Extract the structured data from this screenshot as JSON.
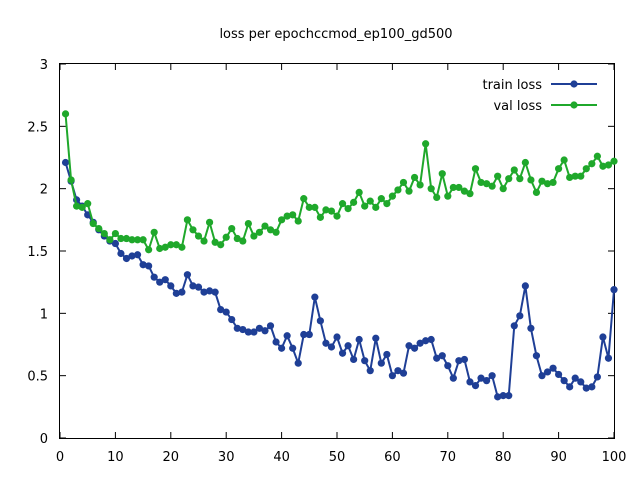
{
  "chart_data": {
    "type": "line",
    "title": "loss per epochccmod_ep100_gd500",
    "xlabel": "",
    "ylabel": "",
    "xlim": [
      0,
      100
    ],
    "ylim": [
      0,
      3
    ],
    "xticks": [
      0,
      10,
      20,
      30,
      40,
      50,
      60,
      70,
      80,
      90,
      100
    ],
    "yticks": [
      0,
      0.5,
      1,
      1.5,
      2,
      2.5,
      3
    ],
    "ytick_labels": [
      "0",
      "0.5",
      "1",
      "1.5",
      "2",
      "2.5",
      "3"
    ],
    "grid": false,
    "legend_position": "top-right",
    "x": [
      1,
      2,
      3,
      4,
      5,
      6,
      7,
      8,
      9,
      10,
      11,
      12,
      13,
      14,
      15,
      16,
      17,
      18,
      19,
      20,
      21,
      22,
      23,
      24,
      25,
      26,
      27,
      28,
      29,
      30,
      31,
      32,
      33,
      34,
      35,
      36,
      37,
      38,
      39,
      40,
      41,
      42,
      43,
      44,
      45,
      46,
      47,
      48,
      49,
      50,
      51,
      52,
      53,
      54,
      55,
      56,
      57,
      58,
      59,
      60,
      61,
      62,
      63,
      64,
      65,
      66,
      67,
      68,
      69,
      70,
      71,
      72,
      73,
      74,
      75,
      76,
      77,
      78,
      79,
      80,
      81,
      82,
      83,
      84,
      85,
      86,
      87,
      88,
      89,
      90,
      91,
      92,
      93,
      94,
      95,
      96,
      97,
      98,
      99,
      100
    ],
    "series": [
      {
        "name": "train loss",
        "color": "#1f3f96",
        "values": [
          2.21,
          2.06,
          1.91,
          1.86,
          1.79,
          1.73,
          1.67,
          1.62,
          1.58,
          1.56,
          1.48,
          1.44,
          1.46,
          1.47,
          1.39,
          1.38,
          1.29,
          1.25,
          1.27,
          1.22,
          1.16,
          1.17,
          1.31,
          1.22,
          1.21,
          1.17,
          1.18,
          1.17,
          1.03,
          1.01,
          0.95,
          0.88,
          0.87,
          0.85,
          0.85,
          0.88,
          0.86,
          0.9,
          0.77,
          0.72,
          0.82,
          0.72,
          0.6,
          0.83,
          0.83,
          1.13,
          0.94,
          0.76,
          0.73,
          0.81,
          0.68,
          0.74,
          0.63,
          0.79,
          0.62,
          0.54,
          0.8,
          0.6,
          0.67,
          0.5,
          0.54,
          0.52,
          0.74,
          0.72,
          0.76,
          0.78,
          0.79,
          0.64,
          0.66,
          0.58,
          0.48,
          0.62,
          0.63,
          0.45,
          0.42,
          0.48,
          0.46,
          0.5,
          0.33,
          0.34,
          0.34,
          0.9,
          0.98,
          1.22,
          0.88,
          0.66,
          0.5,
          0.53,
          0.56,
          0.51,
          0.46,
          0.41,
          0.48,
          0.45,
          0.4,
          0.41,
          0.49,
          0.81,
          0.64,
          1.19
        ]
      },
      {
        "name": "val loss",
        "color": "#1fa82b",
        "values": [
          2.6,
          2.07,
          1.86,
          1.85,
          1.88,
          1.72,
          1.68,
          1.64,
          1.59,
          1.64,
          1.6,
          1.6,
          1.59,
          1.59,
          1.59,
          1.51,
          1.65,
          1.52,
          1.53,
          1.55,
          1.55,
          1.53,
          1.75,
          1.67,
          1.62,
          1.58,
          1.73,
          1.57,
          1.55,
          1.61,
          1.68,
          1.6,
          1.58,
          1.72,
          1.62,
          1.65,
          1.7,
          1.67,
          1.65,
          1.75,
          1.78,
          1.79,
          1.74,
          1.92,
          1.85,
          1.85,
          1.77,
          1.83,
          1.82,
          1.78,
          1.88,
          1.84,
          1.89,
          1.97,
          1.86,
          1.9,
          1.85,
          1.92,
          1.88,
          1.94,
          1.99,
          2.05,
          1.98,
          2.09,
          2.03,
          2.36,
          2.0,
          1.93,
          2.12,
          1.94,
          2.01,
          2.01,
          1.98,
          1.96,
          2.16,
          2.05,
          2.04,
          2.02,
          2.1,
          2.0,
          2.08,
          2.15,
          2.08,
          2.21,
          2.07,
          1.97,
          2.06,
          2.04,
          2.05,
          2.16,
          2.23,
          2.09,
          2.1,
          2.1,
          2.16,
          2.2,
          2.26,
          2.18,
          2.19,
          2.22
        ]
      }
    ]
  }
}
